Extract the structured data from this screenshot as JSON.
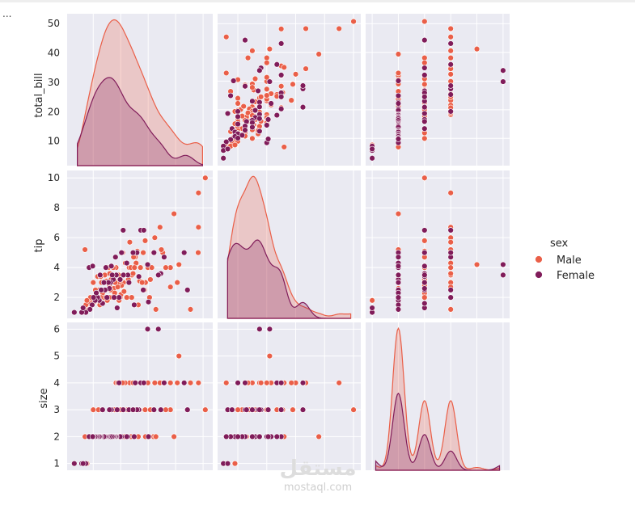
{
  "page": {
    "ellipsis": "...",
    "watermark_arabic": "مستقل",
    "watermark_latin": "mostaql.com"
  },
  "legend": {
    "title": "sex",
    "items": [
      {
        "label": "Male",
        "color": "#ea5f48"
      },
      {
        "label": "Female",
        "color": "#801c5a"
      }
    ]
  },
  "colors": {
    "panel_bg": "#eaeaf2",
    "grid": "#ffffff"
  },
  "chart_data": {
    "type": "scatter",
    "kind": "pairplot",
    "hue": "sex",
    "variables": [
      "total_bill",
      "tip",
      "size"
    ],
    "ranges": {
      "total_bill": [
        0.5,
        53.5
      ],
      "tip": [
        0.6,
        10.5
      ],
      "size": [
        0.75,
        6.25
      ]
    },
    "ticks": {
      "total_bill": [
        10,
        20,
        30,
        40,
        50
      ],
      "tip": [
        2,
        4,
        6,
        8,
        10
      ],
      "size": [
        1,
        2,
        3,
        4,
        5,
        6
      ]
    },
    "diag_kde_peaks": {
      "total_bill": {
        "Male": 0.96,
        "Female": 0.58
      },
      "tip": {
        "Male": 0.96,
        "Female": 0.53
      },
      "size": {
        "Male": 0.96,
        "Female": 0.52
      }
    },
    "series": [
      {
        "name": "Male",
        "color": "#ea5f48",
        "points": [
          [
            50.8,
            10,
            3
          ],
          [
            48.3,
            9,
            4
          ],
          [
            48.2,
            5,
            4
          ],
          [
            48.3,
            6.7,
            4
          ],
          [
            45.4,
            1.2,
            4
          ],
          [
            44.3,
            2.5,
            3
          ],
          [
            40.6,
            3,
            4
          ],
          [
            41.2,
            4.2,
            5
          ],
          [
            39.4,
            7.6,
            2
          ],
          [
            38.1,
            4,
            3
          ],
          [
            38.1,
            2.7,
            4
          ],
          [
            35.3,
            5,
            4
          ],
          [
            34.8,
            5.2,
            4
          ],
          [
            34.3,
            6.7,
            4
          ],
          [
            32.4,
            6,
            4
          ],
          [
            31.9,
            5,
            2
          ],
          [
            30.5,
            2,
            2
          ],
          [
            29.8,
            4.2,
            6
          ],
          [
            29.0,
            3,
            2
          ],
          [
            28.2,
            5,
            4
          ],
          [
            28.6,
            2.5,
            4
          ],
          [
            27.2,
            4,
            4
          ],
          [
            26.9,
            3.1,
            3
          ],
          [
            26.4,
            1.5,
            2
          ],
          [
            25.6,
            4.3,
            4
          ],
          [
            25.3,
            4.7,
            3
          ],
          [
            24.1,
            3.5,
            4
          ],
          [
            24.0,
            2,
            4
          ],
          [
            23.3,
            5.7,
            4
          ],
          [
            23.1,
            4,
            3
          ],
          [
            22.8,
            3.2,
            2
          ],
          [
            22.5,
            3.5,
            2
          ],
          [
            22.2,
            2,
            2
          ],
          [
            21.7,
            4.3,
            2
          ],
          [
            21.6,
            3.5,
            4
          ],
          [
            21.0,
            3,
            2
          ],
          [
            20.7,
            5,
            4
          ],
          [
            20.3,
            2.8,
            3
          ],
          [
            20.0,
            3.2,
            2
          ],
          [
            19.8,
            2,
            2
          ],
          [
            19.5,
            3,
            3
          ],
          [
            19.4,
            1.8,
            2
          ],
          [
            18.8,
            3,
            2
          ],
          [
            18.4,
            3.5,
            2
          ],
          [
            18.3,
            4,
            4
          ],
          [
            17.9,
            3.1,
            2
          ],
          [
            17.5,
            2.6,
            2
          ],
          [
            17.3,
            4,
            2
          ],
          [
            16.9,
            2,
            3
          ],
          [
            16.5,
            3.2,
            2
          ],
          [
            16.3,
            2.5,
            2
          ],
          [
            16.0,
            3.6,
            3
          ],
          [
            15.8,
            2,
            2
          ],
          [
            15.5,
            4,
            2
          ],
          [
            15.1,
            1.8,
            2
          ],
          [
            14.8,
            3.1,
            2
          ],
          [
            14.5,
            2.5,
            2
          ],
          [
            14.0,
            3,
            2
          ],
          [
            13.8,
            2,
            2
          ],
          [
            13.4,
            2.3,
            2
          ],
          [
            13.0,
            3,
            2
          ],
          [
            12.7,
            2,
            2
          ],
          [
            12.4,
            1.5,
            2
          ],
          [
            12.0,
            2.5,
            2
          ],
          [
            11.6,
            3.4,
            2
          ],
          [
            11.2,
            1.8,
            2
          ],
          [
            10.8,
            2.5,
            2
          ],
          [
            10.3,
            1.7,
            2
          ],
          [
            10.0,
            3,
            3
          ],
          [
            9.6,
            1.8,
            2
          ],
          [
            9.0,
            2,
            2
          ],
          [
            8.5,
            1.6,
            2
          ],
          [
            8.0,
            1.2,
            2
          ],
          [
            7.5,
            1.1,
            1
          ],
          [
            7.3,
            1.5,
            2
          ],
          [
            7.0,
            5.2,
            2
          ],
          [
            7.7,
            1.8,
            1
          ],
          [
            26.0,
            5.1,
            3
          ],
          [
            24.7,
            4.7,
            3
          ],
          [
            22.4,
            3.5,
            3
          ],
          [
            27.8,
            3,
            4
          ],
          [
            29.9,
            4,
            4
          ],
          [
            32.8,
            1.2,
            2
          ],
          [
            31.3,
            4,
            3
          ],
          [
            20.1,
            2.2,
            3
          ],
          [
            17.8,
            2.3,
            3
          ],
          [
            15.9,
            2.8,
            3
          ],
          [
            13.3,
            2.5,
            3
          ],
          [
            11.9,
            2,
            3
          ],
          [
            14.2,
            3.5,
            2
          ],
          [
            21.2,
            2.4,
            2
          ],
          [
            23.7,
            4,
            2
          ],
          [
            18.9,
            2.7,
            4
          ],
          [
            16.7,
            4.1,
            2
          ],
          [
            19.2,
            3.5,
            2
          ],
          [
            12.7,
            3.4,
            2
          ],
          [
            25.0,
            4,
            3
          ],
          [
            28.9,
            5.8,
            3
          ],
          [
            30.8,
            3.2,
            3
          ],
          [
            35.8,
            4.7,
            4
          ],
          [
            36.4,
            4,
            3
          ],
          [
            18.0,
            3,
            2
          ],
          [
            15.4,
            3,
            2
          ],
          [
            24.5,
            3.6,
            4
          ],
          [
            26.6,
            3.4,
            3
          ]
        ]
      },
      {
        "name": "Female",
        "color": "#801c5a",
        "points": [
          [
            44.3,
            2.5,
            3
          ],
          [
            43.1,
            5,
            4
          ],
          [
            35.8,
            4.7,
            4
          ],
          [
            34.6,
            3.6,
            3
          ],
          [
            33.7,
            3.5,
            6
          ],
          [
            32.1,
            5,
            3
          ],
          [
            30.1,
            1.7,
            2
          ],
          [
            29.8,
            4.2,
            6
          ],
          [
            28.2,
            2.5,
            4
          ],
          [
            27.3,
            6.5,
            4
          ],
          [
            26.6,
            3.4,
            3
          ],
          [
            25.3,
            5,
            4
          ],
          [
            24.9,
            1.5,
            2
          ],
          [
            23.0,
            3,
            3
          ],
          [
            22.6,
            3.5,
            2
          ],
          [
            22.2,
            4.3,
            2
          ],
          [
            21.0,
            3.5,
            3
          ],
          [
            20.3,
            5,
            2
          ],
          [
            19.8,
            3.2,
            2
          ],
          [
            19.4,
            2,
            4
          ],
          [
            18.7,
            1.3,
            3
          ],
          [
            18.4,
            3.5,
            2
          ],
          [
            18.1,
            4.7,
            2
          ],
          [
            17.6,
            2,
            2
          ],
          [
            17.3,
            3.2,
            2
          ],
          [
            16.9,
            3.5,
            2
          ],
          [
            16.6,
            4.1,
            3
          ],
          [
            16.3,
            3,
            2
          ],
          [
            15.9,
            2.6,
            3
          ],
          [
            15.5,
            3,
            2
          ],
          [
            15.0,
            2,
            2
          ],
          [
            14.6,
            4,
            2
          ],
          [
            14.3,
            2.5,
            2
          ],
          [
            13.9,
            3,
            2
          ],
          [
            13.4,
            1.6,
            3
          ],
          [
            12.9,
            2.5,
            2
          ],
          [
            12.5,
            3.5,
            2
          ],
          [
            12.2,
            1.8,
            2
          ],
          [
            11.6,
            2,
            2
          ],
          [
            11.1,
            2.3,
            2
          ],
          [
            10.7,
            1.8,
            2
          ],
          [
            10.1,
            2,
            2
          ],
          [
            9.6,
            1.5,
            2
          ],
          [
            8.8,
            1.2,
            2
          ],
          [
            8.5,
            4,
            2
          ],
          [
            7.3,
            1,
            1
          ],
          [
            5.8,
            1,
            1
          ],
          [
            3.1,
            1,
            1
          ],
          [
            6.3,
            1.3,
            1
          ],
          [
            9.8,
            4.1,
            2
          ],
          [
            20.9,
            6.5,
            3
          ],
          [
            25.9,
            5,
            3
          ],
          [
            28.4,
            6.5,
            4
          ],
          [
            24.5,
            5,
            3
          ]
        ]
      }
    ]
  }
}
